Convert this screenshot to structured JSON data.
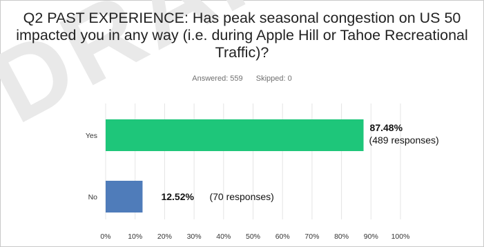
{
  "watermark": "DRAFT",
  "chart_data": {
    "type": "bar",
    "orientation": "horizontal",
    "title": "Q2 PAST EXPERIENCE: Has peak seasonal congestion on US 50 impacted you in any way (i.e. during Apple Hill or Tahoe Recreational Traffic)?",
    "answered_label": "Answered: 559",
    "skipped_label": "Skipped: 0",
    "categories": [
      "Yes",
      "No"
    ],
    "values": [
      87.48,
      12.52
    ],
    "value_labels": [
      "87.48%",
      "12.52%"
    ],
    "response_labels": [
      "(489 responses)",
      "(70 responses)"
    ],
    "colors": [
      "#1ec67a",
      "#4f7cba"
    ],
    "xlim": [
      0,
      100
    ],
    "xticks": [
      "0%",
      "10%",
      "20%",
      "30%",
      "40%",
      "50%",
      "60%",
      "70%",
      "80%",
      "90%",
      "100%"
    ],
    "grid": true
  }
}
